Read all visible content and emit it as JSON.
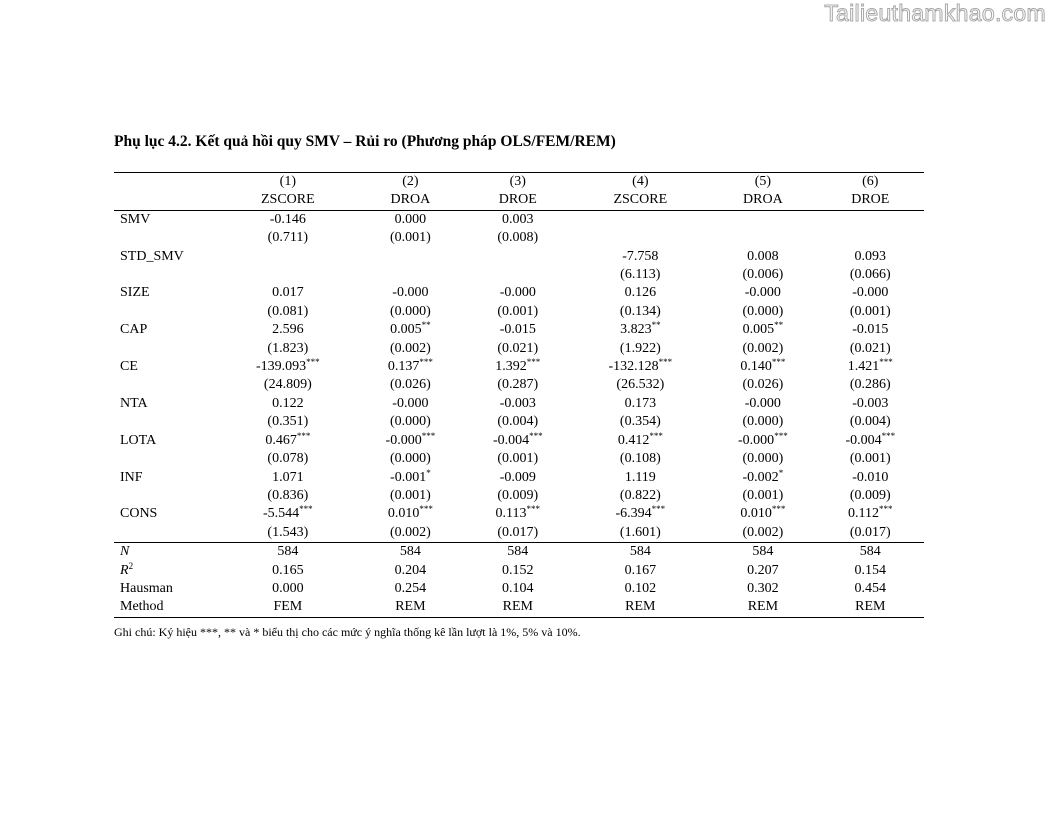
{
  "watermark": "Tailieuthamkhao.com",
  "title": "Phụ lục 4.2. Kết quả hồi quy SMV – Rủi ro (Phương pháp OLS/FEM/REM)",
  "columns": [
    {
      "num": "(1)",
      "dep": "ZSCORE"
    },
    {
      "num": "(2)",
      "dep": "DROA"
    },
    {
      "num": "(3)",
      "dep": "DROE"
    },
    {
      "num": "(4)",
      "dep": "ZSCORE"
    },
    {
      "num": "(5)",
      "dep": "DROA"
    },
    {
      "num": "(6)",
      "dep": "DROE"
    }
  ],
  "rows": [
    {
      "var": "SMV",
      "coef": [
        {
          "v": "-0.146",
          "s": ""
        },
        {
          "v": "0.000",
          "s": ""
        },
        {
          "v": "0.003",
          "s": ""
        },
        {
          "v": "",
          "s": ""
        },
        {
          "v": "",
          "s": ""
        },
        {
          "v": "",
          "s": ""
        }
      ],
      "se": [
        "(0.711)",
        "(0.001)",
        "(0.008)",
        "",
        "",
        ""
      ]
    },
    {
      "var": "STD_SMV",
      "coef": [
        {
          "v": "",
          "s": ""
        },
        {
          "v": "",
          "s": ""
        },
        {
          "v": "",
          "s": ""
        },
        {
          "v": "-7.758",
          "s": ""
        },
        {
          "v": "0.008",
          "s": ""
        },
        {
          "v": "0.093",
          "s": ""
        }
      ],
      "se": [
        "",
        "",
        "",
        "(6.113)",
        "(0.006)",
        "(0.066)"
      ]
    },
    {
      "var": "SIZE",
      "coef": [
        {
          "v": "0.017",
          "s": ""
        },
        {
          "v": "-0.000",
          "s": ""
        },
        {
          "v": "-0.000",
          "s": ""
        },
        {
          "v": "0.126",
          "s": ""
        },
        {
          "v": "-0.000",
          "s": ""
        },
        {
          "v": "-0.000",
          "s": ""
        }
      ],
      "se": [
        "(0.081)",
        "(0.000)",
        "(0.001)",
        "(0.134)",
        "(0.000)",
        "(0.001)"
      ]
    },
    {
      "var": "CAP",
      "coef": [
        {
          "v": "2.596",
          "s": ""
        },
        {
          "v": "0.005",
          "s": "**"
        },
        {
          "v": "-0.015",
          "s": ""
        },
        {
          "v": "3.823",
          "s": "**"
        },
        {
          "v": "0.005",
          "s": "**"
        },
        {
          "v": "-0.015",
          "s": ""
        }
      ],
      "se": [
        "(1.823)",
        "(0.002)",
        "(0.021)",
        "(1.922)",
        "(0.002)",
        "(0.021)"
      ]
    },
    {
      "var": "CE",
      "coef": [
        {
          "v": "-139.093",
          "s": "***"
        },
        {
          "v": "0.137",
          "s": "***"
        },
        {
          "v": "1.392",
          "s": "***"
        },
        {
          "v": "-132.128",
          "s": "***"
        },
        {
          "v": "0.140",
          "s": "***"
        },
        {
          "v": "1.421",
          "s": "***"
        }
      ],
      "se": [
        "(24.809)",
        "(0.026)",
        "(0.287)",
        "(26.532)",
        "(0.026)",
        "(0.286)"
      ]
    },
    {
      "var": "NTA",
      "coef": [
        {
          "v": "0.122",
          "s": ""
        },
        {
          "v": "-0.000",
          "s": ""
        },
        {
          "v": "-0.003",
          "s": ""
        },
        {
          "v": "0.173",
          "s": ""
        },
        {
          "v": "-0.000",
          "s": ""
        },
        {
          "v": "-0.003",
          "s": ""
        }
      ],
      "se": [
        "(0.351)",
        "(0.000)",
        "(0.004)",
        "(0.354)",
        "(0.000)",
        "(0.004)"
      ]
    },
    {
      "var": "LOTA",
      "coef": [
        {
          "v": "0.467",
          "s": "***"
        },
        {
          "v": "-0.000",
          "s": "***"
        },
        {
          "v": "-0.004",
          "s": "***"
        },
        {
          "v": "0.412",
          "s": "***"
        },
        {
          "v": "-0.000",
          "s": "***"
        },
        {
          "v": "-0.004",
          "s": "***"
        }
      ],
      "se": [
        "(0.078)",
        "(0.000)",
        "(0.001)",
        "(0.108)",
        "(0.000)",
        "(0.001)"
      ]
    },
    {
      "var": "INF",
      "coef": [
        {
          "v": "1.071",
          "s": ""
        },
        {
          "v": "-0.001",
          "s": "*"
        },
        {
          "v": "-0.009",
          "s": ""
        },
        {
          "v": "1.119",
          "s": ""
        },
        {
          "v": "-0.002",
          "s": "*"
        },
        {
          "v": "-0.010",
          "s": ""
        }
      ],
      "se": [
        "(0.836)",
        "(0.001)",
        "(0.009)",
        "(0.822)",
        "(0.001)",
        "(0.009)"
      ]
    },
    {
      "var": "CONS",
      "coef": [
        {
          "v": "-5.544",
          "s": "***"
        },
        {
          "v": "0.010",
          "s": "***"
        },
        {
          "v": "0.113",
          "s": "***"
        },
        {
          "v": "-6.394",
          "s": "***"
        },
        {
          "v": "0.010",
          "s": "***"
        },
        {
          "v": "0.112",
          "s": "***"
        }
      ],
      "se": [
        "(1.543)",
        "(0.002)",
        "(0.017)",
        "(1.601)",
        "(0.002)",
        "(0.017)"
      ]
    }
  ],
  "stats": [
    {
      "label": "N",
      "label_sup": "",
      "values": [
        "584",
        "584",
        "584",
        "584",
        "584",
        "584"
      ]
    },
    {
      "label": "R",
      "label_sup": "2",
      "values": [
        "0.165",
        "0.204",
        "0.152",
        "0.167",
        "0.207",
        "0.154"
      ]
    },
    {
      "label": "Hausman",
      "label_sup": "",
      "values": [
        "0.000",
        "0.254",
        "0.104",
        "0.102",
        "0.302",
        "0.454"
      ]
    },
    {
      "label": "Method",
      "label_sup": "",
      "values": [
        "FEM",
        "REM",
        "REM",
        "REM",
        "REM",
        "REM"
      ]
    }
  ],
  "note": "Ghi chú: Ký hiệu ***, ** và * biểu thị cho các mức ý nghĩa thống kê lần lượt là 1%, 5% và 10%."
}
